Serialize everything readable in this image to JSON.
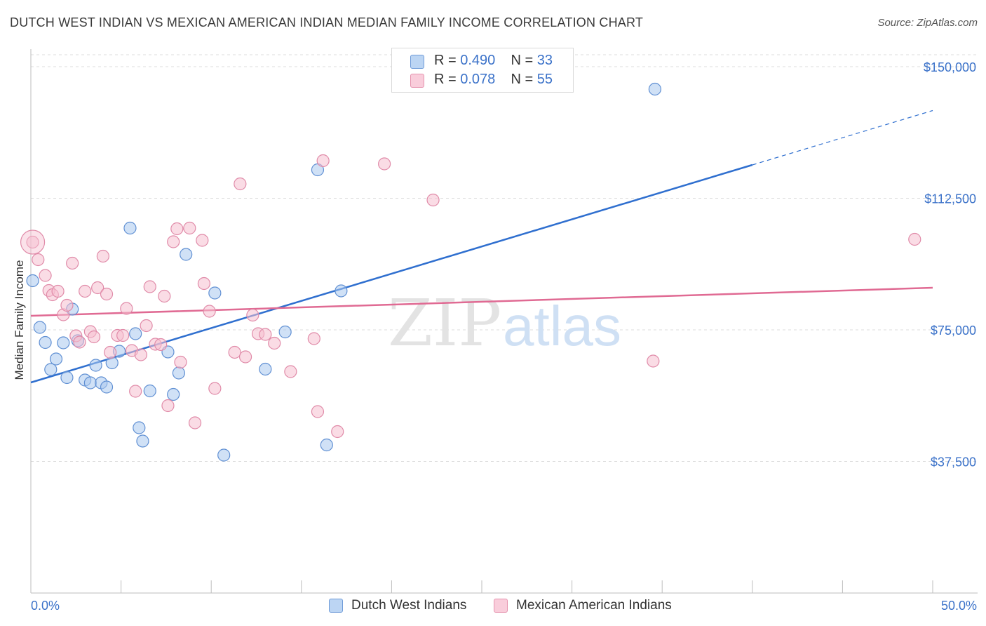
{
  "header": {
    "title": "DUTCH WEST INDIAN VS MEXICAN AMERICAN INDIAN MEDIAN FAMILY INCOME CORRELATION CHART",
    "source": "Source: ZipAtlas.com"
  },
  "watermark": {
    "part1": "ZIP",
    "part2": "atlas"
  },
  "legend": {
    "r_label": "R =",
    "n_label": "N =",
    "rows": [
      {
        "r": "0.490",
        "n": "33"
      },
      {
        "r": "0.078",
        "n": "55"
      }
    ]
  },
  "colors": {
    "blue_fill": "#a9c8ef",
    "blue_stroke": "#5f8fd3",
    "blue_line": "#2f6fcf",
    "pink_fill": "#f6bfd0",
    "pink_stroke": "#e08aa8",
    "pink_line": "#e06a93",
    "axis_text": "#3b72c9"
  },
  "chart_data": {
    "type": "scatter",
    "ylabel": "Median Family Income",
    "xlim": [
      0,
      50
    ],
    "ylim": [
      0,
      155000
    ],
    "x_tick_labels": [
      "0.0%",
      "50.0%"
    ],
    "y_ticks": [
      37500,
      75000,
      112500,
      150000
    ],
    "y_tick_labels": [
      "$37,500",
      "$75,000",
      "$112,500",
      "$150,000"
    ],
    "grid": true,
    "series": [
      {
        "name": "Dutch West Indians",
        "color": "blue",
        "points": [
          [
            0.1,
            89000
          ],
          [
            0.5,
            75700
          ],
          [
            0.8,
            71400
          ],
          [
            1.1,
            63700
          ],
          [
            1.4,
            66700
          ],
          [
            1.8,
            71300
          ],
          [
            2.0,
            61400
          ],
          [
            2.3,
            80900
          ],
          [
            2.6,
            71900
          ],
          [
            3.0,
            60700
          ],
          [
            3.3,
            59900
          ],
          [
            3.6,
            64900
          ],
          [
            3.9,
            59900
          ],
          [
            4.2,
            58700
          ],
          [
            4.5,
            65600
          ],
          [
            4.9,
            68900
          ],
          [
            5.5,
            104000
          ],
          [
            5.8,
            73900
          ],
          [
            6.0,
            47100
          ],
          [
            6.2,
            43300
          ],
          [
            6.6,
            57600
          ],
          [
            7.6,
            68700
          ],
          [
            7.9,
            56600
          ],
          [
            8.2,
            62700
          ],
          [
            8.6,
            96500
          ],
          [
            10.2,
            85500
          ],
          [
            10.7,
            39300
          ],
          [
            13.0,
            63800
          ],
          [
            14.1,
            74400
          ],
          [
            15.9,
            120600
          ],
          [
            16.4,
            42200
          ],
          [
            17.2,
            86100
          ],
          [
            34.6,
            143600
          ]
        ],
        "trend": {
          "x": [
            0,
            40,
            50
          ],
          "y": [
            60000,
            122000,
            137500
          ],
          "dashed_after_x": 40
        }
      },
      {
        "name": "Mexican American Indians",
        "color": "pink",
        "points": [
          [
            0.1,
            100000
          ],
          [
            0.4,
            95000
          ],
          [
            0.8,
            90500
          ],
          [
            1.0,
            86200
          ],
          [
            1.2,
            85000
          ],
          [
            1.5,
            86000
          ],
          [
            1.8,
            79300
          ],
          [
            2.0,
            82000
          ],
          [
            2.3,
            94000
          ],
          [
            2.5,
            73300
          ],
          [
            2.7,
            71500
          ],
          [
            3.0,
            86000
          ],
          [
            3.3,
            74500
          ],
          [
            3.5,
            73000
          ],
          [
            3.7,
            87000
          ],
          [
            4.0,
            96000
          ],
          [
            4.2,
            85200
          ],
          [
            4.4,
            68600
          ],
          [
            4.8,
            73400
          ],
          [
            5.1,
            73400
          ],
          [
            5.3,
            81100
          ],
          [
            5.6,
            69100
          ],
          [
            5.8,
            57500
          ],
          [
            6.1,
            67900
          ],
          [
            6.4,
            76200
          ],
          [
            6.6,
            87300
          ],
          [
            6.9,
            70900
          ],
          [
            7.2,
            70800
          ],
          [
            7.4,
            84600
          ],
          [
            7.6,
            53400
          ],
          [
            7.9,
            100100
          ],
          [
            8.1,
            103800
          ],
          [
            8.3,
            65800
          ],
          [
            8.8,
            104000
          ],
          [
            9.1,
            48500
          ],
          [
            9.5,
            100500
          ],
          [
            9.6,
            88200
          ],
          [
            9.9,
            80300
          ],
          [
            10.2,
            58300
          ],
          [
            11.3,
            68600
          ],
          [
            11.6,
            116600
          ],
          [
            11.9,
            67300
          ],
          [
            12.3,
            79200
          ],
          [
            12.6,
            73900
          ],
          [
            13.0,
            73700
          ],
          [
            13.5,
            71200
          ],
          [
            14.4,
            63100
          ],
          [
            15.7,
            72500
          ],
          [
            15.9,
            51700
          ],
          [
            16.2,
            123200
          ],
          [
            17.0,
            46000
          ],
          [
            19.6,
            122300
          ],
          [
            22.3,
            112000
          ],
          [
            34.5,
            66100
          ],
          [
            49.0,
            100800
          ]
        ],
        "trend": {
          "x": [
            0,
            50
          ],
          "y": [
            79000,
            87000
          ]
        }
      }
    ]
  }
}
